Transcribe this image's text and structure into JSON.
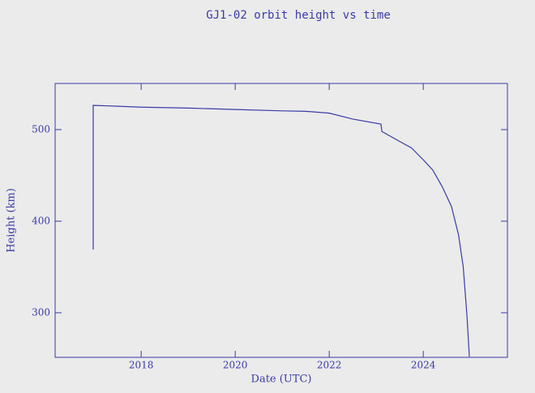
{
  "chart_data": {
    "type": "line",
    "title": "GJ1-02 orbit height vs time",
    "xlabel": "Date (UTC)",
    "ylabel": "Height (km)",
    "x": [
      2016.98,
      2016.98,
      2017.5,
      2018,
      2019,
      2020,
      2021,
      2021.5,
      2022,
      2022.5,
      2023.1,
      2023.12,
      2023.5,
      2023.75,
      2024,
      2024.2,
      2024.4,
      2024.6,
      2024.75,
      2024.85,
      2024.93,
      2024.98
    ],
    "series": [
      {
        "name": "GJ1-02",
        "color": "#3a3aa8",
        "values": [
          369,
          526.5,
          525.5,
          524.5,
          523.5,
          522,
          520.5,
          520,
          518,
          511.5,
          506,
          498,
          487,
          480,
          467,
          456,
          438,
          416,
          385,
          350,
          296,
          252
        ]
      }
    ],
    "xlim": [
      2016.17,
      2025.79
    ],
    "xticks": [
      2018,
      2020,
      2022,
      2024
    ],
    "ylim": [
      251.3,
      550.4
    ],
    "yticks": [
      300,
      400,
      500
    ]
  }
}
